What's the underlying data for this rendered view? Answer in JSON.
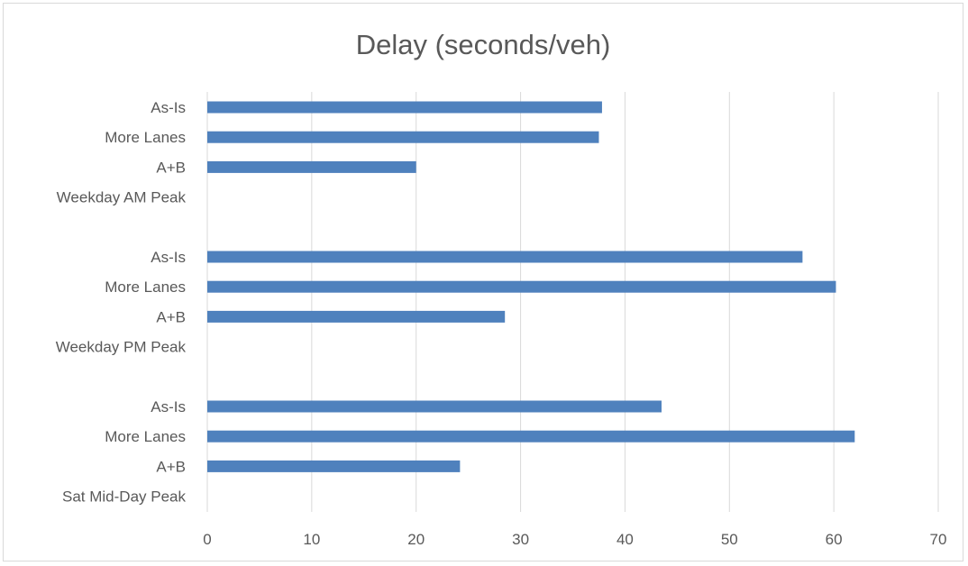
{
  "chart_data": {
    "type": "bar",
    "orientation": "horizontal",
    "title": "Delay (seconds/veh)",
    "xlabel": "",
    "ylabel": "",
    "xlim": [
      0,
      70
    ],
    "x_ticks": [
      0,
      10,
      20,
      30,
      40,
      50,
      60,
      70
    ],
    "grid": true,
    "bar_color": "#4f81bd",
    "rows": [
      {
        "label": "As-Is",
        "value": 37.8
      },
      {
        "label": "More Lanes",
        "value": 37.5
      },
      {
        "label": "A+B",
        "value": 20.0
      },
      {
        "label": "Weekday AM Peak",
        "value": null
      },
      {
        "label": "",
        "value": null
      },
      {
        "label": "As-Is",
        "value": 57.0
      },
      {
        "label": "More Lanes",
        "value": 60.2
      },
      {
        "label": "A+B",
        "value": 28.5
      },
      {
        "label": "Weekday PM Peak",
        "value": null
      },
      {
        "label": "",
        "value": null
      },
      {
        "label": "As-Is",
        "value": 43.5
      },
      {
        "label": "More Lanes",
        "value": 62.0
      },
      {
        "label": "A+B",
        "value": 24.2
      },
      {
        "label": "Sat Mid-Day Peak",
        "value": null
      }
    ]
  }
}
